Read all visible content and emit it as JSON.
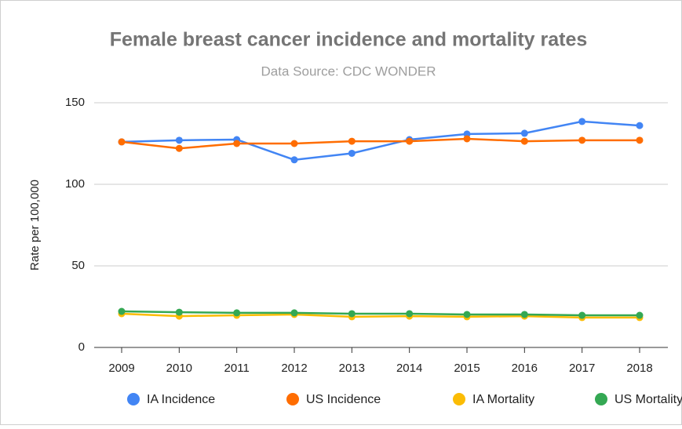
{
  "chart_data": {
    "type": "line",
    "title": "Female breast cancer incidence and mortality rates",
    "subtitle": "Data Source: CDC WONDER",
    "y_label": "Rate per 100,000",
    "categories": [
      "2009",
      "2010",
      "2011",
      "2012",
      "2013",
      "2014",
      "2015",
      "2016",
      "2017",
      "2018"
    ],
    "series": [
      {
        "name": "IA Incidence",
        "color": "#4285f4",
        "values": [
          126,
          127,
          127.4,
          115,
          119,
          127.4,
          130.8,
          131.3,
          138.5,
          136
        ]
      },
      {
        "name": "US Incidence",
        "color": "#ff6d01",
        "values": [
          126,
          122,
          125,
          125,
          126.4,
          126.4,
          127.9,
          126.4,
          127,
          127
        ]
      },
      {
        "name": "IA Mortality",
        "color": "#fbbc04",
        "values": [
          20.7,
          19.2,
          19.7,
          20.2,
          18.8,
          19.2,
          18.8,
          19.2,
          18.3,
          18.3
        ]
      },
      {
        "name": "US Mortality",
        "color": "#34a853",
        "values": [
          22.1,
          21.6,
          21.2,
          21.2,
          20.7,
          20.7,
          20.2,
          20.2,
          19.7,
          19.7
        ]
      }
    ],
    "ylim": [
      0,
      150
    ],
    "yticks": [
      0,
      50,
      100,
      150
    ],
    "grid": true,
    "legend": "bottom"
  }
}
